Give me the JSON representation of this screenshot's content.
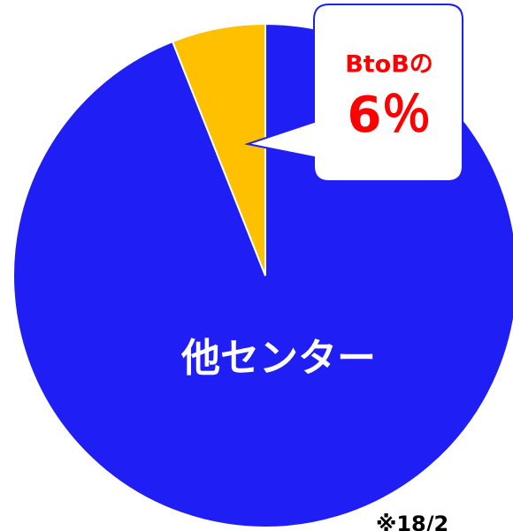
{
  "chart_data": {
    "type": "pie",
    "categories": [
      "他センター",
      "BtoBの"
    ],
    "values": [
      94,
      6
    ],
    "value_labels": [
      null,
      "6％"
    ],
    "colors": [
      "#1e1ef5",
      "#ffc000"
    ],
    "note": "※18/2"
  }
}
